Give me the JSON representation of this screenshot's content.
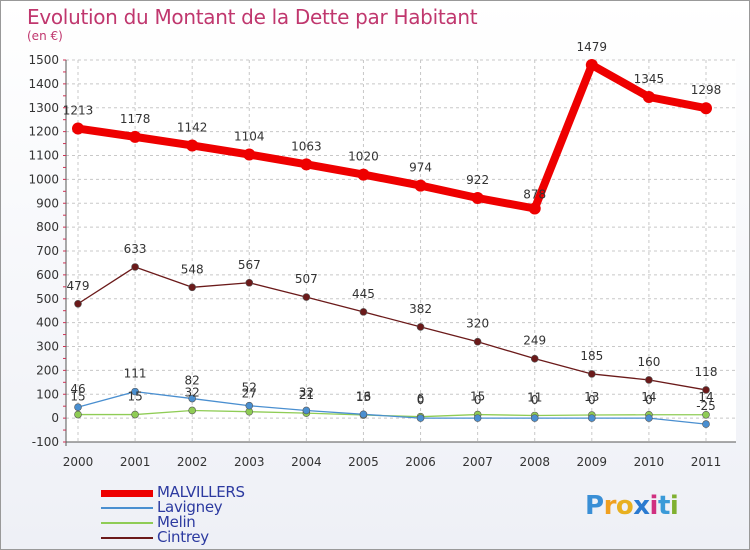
{
  "title": "Evolution du Montant de la Dette par Habitant",
  "unit": "(en €)",
  "brand": {
    "letters": [
      "P",
      "r",
      "o",
      "x",
      "i",
      "t",
      "i"
    ],
    "colors": [
      "#3a8fd6",
      "#f0a020",
      "#e8b020",
      "#2a7ad0",
      "#d03080",
      "#3a9ad8",
      "#80b030"
    ]
  },
  "chart_data": {
    "type": "line",
    "x": [
      "2000",
      "2001",
      "2002",
      "2003",
      "2004",
      "2005",
      "2006",
      "2007",
      "2008",
      "2009",
      "2010",
      "2011"
    ],
    "ylim": [
      -100,
      1500
    ],
    "yticks": [
      -100,
      0,
      100,
      200,
      300,
      400,
      500,
      600,
      700,
      800,
      900,
      1000,
      1100,
      1200,
      1300,
      1400,
      1500
    ],
    "grid": true,
    "legend": "bottom-left",
    "series": [
      {
        "name": "MALVILLERS",
        "color": "#ee0000",
        "values": [
          1213,
          1178,
          1142,
          1104,
          1063,
          1020,
          974,
          922,
          878,
          1479,
          1345,
          1298
        ],
        "labels": [
          "1213",
          "1178",
          "1142",
          "1104",
          "1063",
          "1020",
          "974",
          "922",
          "878",
          "1479",
          "1345",
          "1298"
        ]
      },
      {
        "name": "Lavigney",
        "color": "#4a8fd0",
        "values": [
          46,
          111,
          82,
          52,
          32,
          16,
          0,
          0,
          0,
          0,
          0,
          -25
        ],
        "labels": [
          "46",
          "111",
          "82",
          "52",
          "32",
          "16",
          "0",
          "0",
          "0",
          "0",
          "0",
          "-25"
        ]
      },
      {
        "name": "Melin",
        "color": "#8fcc55",
        "values": [
          15,
          15,
          32,
          27,
          21,
          13,
          6,
          15,
          11,
          13,
          14,
          14
        ],
        "labels": [
          "15",
          "15",
          "32",
          "27",
          "21",
          "13",
          "6",
          "15",
          "11",
          "13",
          "14",
          "14"
        ]
      },
      {
        "name": "Cintrey",
        "color": "#6b1a1a",
        "values": [
          479,
          633,
          548,
          567,
          507,
          445,
          382,
          320,
          249,
          185,
          160,
          118
        ],
        "labels": [
          "479",
          "633",
          "548",
          "567",
          "507",
          "445",
          "382",
          "320",
          "249",
          "185",
          "160",
          "118"
        ]
      }
    ]
  }
}
